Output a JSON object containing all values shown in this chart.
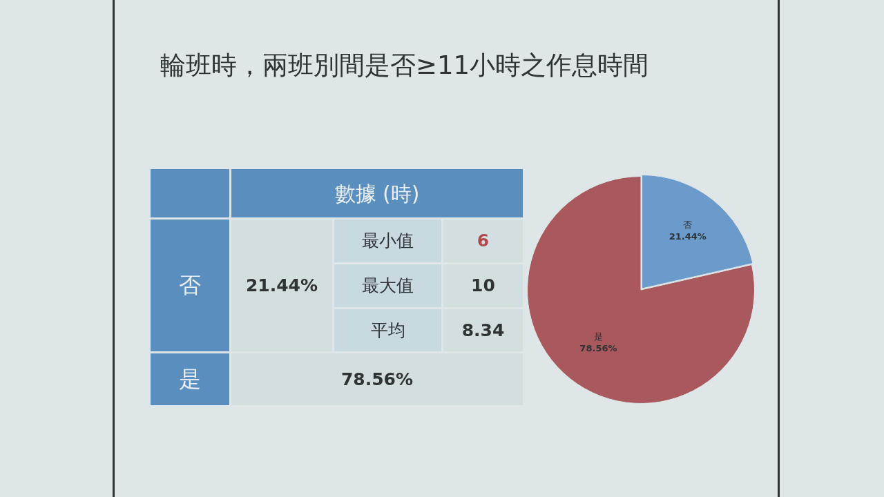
{
  "chart_data": [
    {
      "type": "other",
      "title": "輪班時，兩班別間是否≥11小時之作息時間",
      "annotations": [
        "數據 (時)",
        "否",
        "21.44%",
        "最小值",
        "6",
        "最大值",
        "10",
        "平均",
        "8.34",
        "是",
        "78.56%"
      ]
    },
    {
      "type": "pie",
      "categories": [
        "否",
        "是"
      ],
      "values": [
        21.44,
        78.56
      ],
      "colors": [
        "#6b9bcb",
        "#a9585d"
      ],
      "value_labels": [
        "21.44%",
        "78.56%"
      ]
    }
  ]
}
